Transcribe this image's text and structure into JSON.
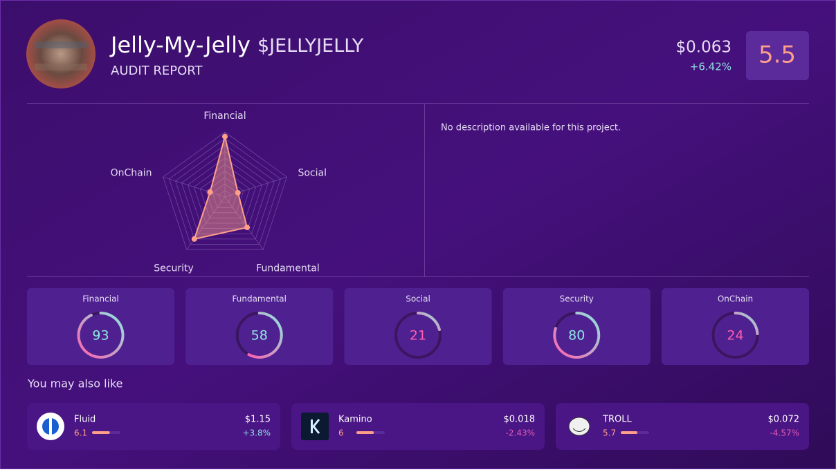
{
  "header": {
    "name": "Jelly-My-Jelly",
    "ticker": "$JELLYJELLY",
    "subtitle": "AUDIT REPORT",
    "price": "$0.063",
    "change": "+6.42%",
    "score": 5.5
  },
  "chart_data": {
    "type": "radar",
    "categories": [
      "Financial",
      "Social",
      "Fundamental",
      "Security",
      "OnChain"
    ],
    "values": [
      93,
      21,
      58,
      80,
      24
    ],
    "ylim": [
      0,
      100
    ],
    "color": "#ff9f8a"
  },
  "description": "No description available for this project.",
  "scores": [
    {
      "label": "Financial",
      "value": 93
    },
    {
      "label": "Fundamental",
      "value": 58
    },
    {
      "label": "Social",
      "value": 21
    },
    {
      "label": "Security",
      "value": 80
    },
    {
      "label": "OnChain",
      "value": 24
    }
  ],
  "related": {
    "title": "You may also like",
    "items": [
      {
        "name": "Fluid",
        "score": 6.1,
        "price": "$1.15",
        "change": "+3.8%"
      },
      {
        "name": "Kamino",
        "score": 6.0,
        "price": "$0.018",
        "change": "-2.43%"
      },
      {
        "name": "TROLL",
        "score": 5.7,
        "price": "$0.072",
        "change": "-4.57%"
      }
    ]
  }
}
